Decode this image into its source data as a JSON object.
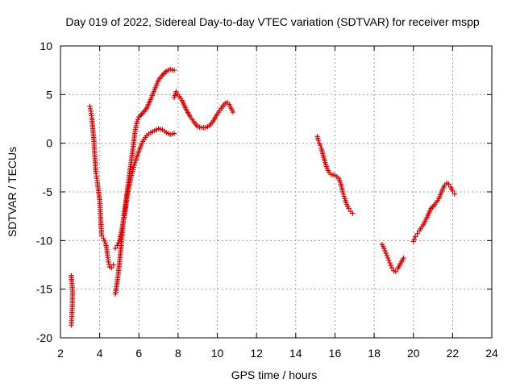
{
  "chart_data": {
    "type": "scatter",
    "title": "Day 019 of 2022, Sidereal Day-to-day VTEC variation (SDTVAR) for receiver mspp",
    "xlabel": "GPS time / hours",
    "ylabel": "SDTVAR / TECUs",
    "xlim": [
      2,
      24
    ],
    "ylim": [
      -20,
      10
    ],
    "xticks": [
      2,
      4,
      6,
      8,
      10,
      12,
      14,
      16,
      18,
      20,
      22,
      24
    ],
    "yticks": [
      -20,
      -15,
      -10,
      -5,
      0,
      5,
      10
    ],
    "grid": true,
    "marker": "+",
    "color": "#e00000",
    "segments": [
      {
        "name": "seg1",
        "x": [
          2.55,
          2.58,
          2.6,
          2.62,
          2.55,
          2.56
        ],
        "y": [
          -18.7,
          -17.8,
          -16.8,
          -15.2,
          -13.6,
          -14.0
        ]
      },
      {
        "name": "seg2",
        "x": [
          3.5,
          3.55,
          3.6,
          3.65,
          3.7,
          3.75,
          3.8,
          3.85,
          3.9,
          4.0,
          4.05,
          4.1,
          4.2,
          4.3,
          4.35,
          4.4,
          4.45,
          4.5,
          4.6,
          4.7
        ],
        "y": [
          3.8,
          3.3,
          2.6,
          1.5,
          0.4,
          -1.2,
          -2.9,
          -3.6,
          -4.3,
          -5.8,
          -7.8,
          -9.5,
          -9.8,
          -10.3,
          -10.7,
          -11.5,
          -12.2,
          -12.7,
          -12.8,
          -12.5
        ]
      },
      {
        "name": "seg3",
        "x": [
          4.8,
          4.9,
          5.0,
          5.1,
          5.2,
          5.3,
          5.4,
          5.5,
          5.6,
          5.7,
          5.8,
          5.9,
          6.0,
          6.2,
          6.4,
          6.6,
          6.8,
          7.0,
          7.2,
          7.4,
          7.6,
          7.8
        ],
        "y": [
          -15.5,
          -14.2,
          -12.5,
          -10.5,
          -8.0,
          -6.5,
          -5.0,
          -3.5,
          -2.0,
          -0.5,
          1.2,
          2.2,
          2.7,
          3.1,
          3.6,
          4.5,
          5.5,
          6.5,
          7.0,
          7.4,
          7.6,
          7.5
        ]
      },
      {
        "name": "seg4",
        "x": [
          4.8,
          4.9,
          5.0,
          5.1,
          5.2,
          5.3,
          5.4,
          5.5,
          5.6,
          5.7,
          5.8,
          5.9,
          6.0,
          6.2,
          6.4,
          6.6,
          6.8,
          7.0,
          7.2,
          7.4,
          7.6,
          7.8
        ],
        "y": [
          -10.8,
          -10.5,
          -10.0,
          -9.2,
          -8.2,
          -7.0,
          -5.5,
          -4.4,
          -3.5,
          -2.7,
          -2.0,
          -1.4,
          -0.8,
          0.2,
          0.8,
          1.1,
          1.3,
          1.5,
          1.4,
          1.1,
          0.9,
          1.0
        ]
      },
      {
        "name": "seg5",
        "x": [
          7.8,
          7.9,
          8.0,
          8.2,
          8.4,
          8.6,
          8.8,
          9.0,
          9.2,
          9.4,
          9.6,
          9.8,
          10.0,
          10.2,
          10.4,
          10.5,
          10.6,
          10.7,
          10.8
        ],
        "y": [
          4.7,
          5.3,
          5.0,
          4.4,
          3.5,
          2.8,
          2.2,
          1.7,
          1.6,
          1.6,
          1.8,
          2.3,
          3.0,
          3.6,
          4.1,
          4.2,
          4.0,
          3.6,
          3.2
        ]
      },
      {
        "name": "seg6",
        "x": [
          15.1,
          15.15,
          15.2,
          15.25,
          15.3,
          15.5,
          15.6,
          15.7,
          15.8,
          16.0,
          16.2,
          16.3,
          16.4,
          16.5,
          16.6,
          16.7,
          16.8,
          16.9
        ],
        "y": [
          0.7,
          0.3,
          0.0,
          -0.2,
          -0.5,
          -2.0,
          -2.6,
          -3.0,
          -3.2,
          -3.3,
          -3.6,
          -4.2,
          -5.0,
          -5.7,
          -6.3,
          -6.7,
          -7.0,
          -7.2
        ]
      },
      {
        "name": "seg7",
        "x": [
          18.4,
          18.5,
          18.6,
          18.7,
          18.8,
          18.9,
          19.0,
          19.1,
          19.2,
          19.5
        ],
        "y": [
          -10.4,
          -10.8,
          -11.3,
          -11.8,
          -12.3,
          -12.8,
          -13.1,
          -13.2,
          -12.9,
          -11.8
        ]
      },
      {
        "name": "seg8",
        "x": [
          20.0,
          20.1,
          20.2,
          20.3,
          20.5,
          20.7,
          20.9,
          21.1,
          21.3,
          21.5,
          21.6,
          21.7,
          21.8,
          21.9,
          22.0,
          22.1
        ],
        "y": [
          -10.1,
          -9.6,
          -9.3,
          -9.0,
          -8.4,
          -7.6,
          -6.7,
          -6.3,
          -5.7,
          -4.7,
          -4.3,
          -4.1,
          -4.2,
          -4.5,
          -4.9,
          -5.2
        ]
      }
    ]
  }
}
